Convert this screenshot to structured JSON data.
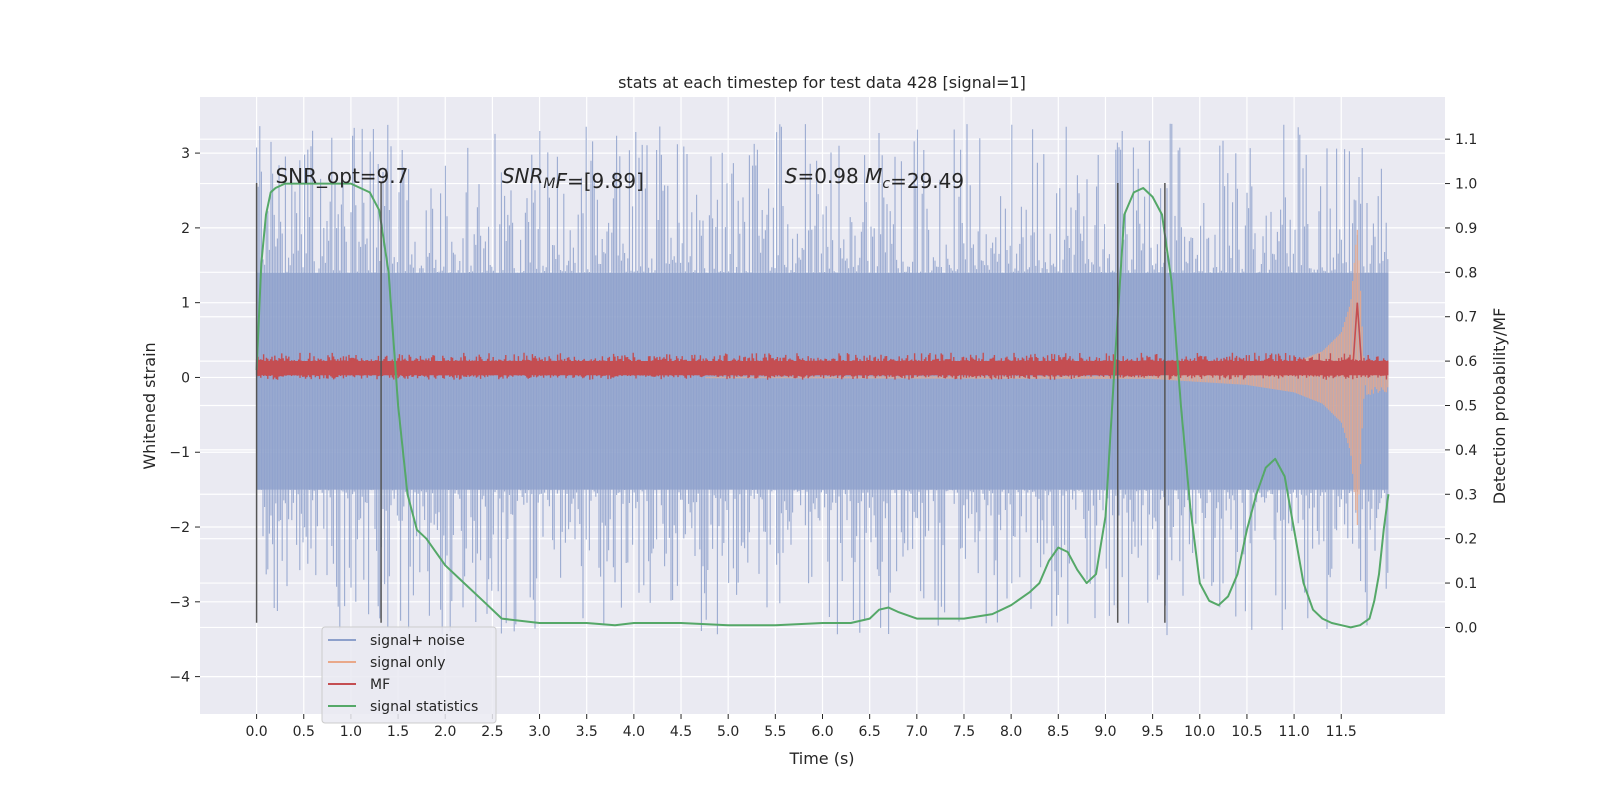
{
  "chart_data": {
    "type": "line",
    "title": "stats at each timestep for test data 428 [signal=1]",
    "xlabel": "Time (s)",
    "ylabel_left": "Whitened strain",
    "ylabel_right": "Detection probability/MF",
    "xlim": [
      -0.6,
      12.6
    ],
    "ylim_left": [
      -4.5,
      3.75
    ],
    "ylim_right": [
      -0.195,
      1.195
    ],
    "x_ticks": [
      0.0,
      0.5,
      1.0,
      1.5,
      2.0,
      2.5,
      3.0,
      3.5,
      4.0,
      4.5,
      5.0,
      5.5,
      6.0,
      6.5,
      7.0,
      7.5,
      8.0,
      8.5,
      9.0,
      9.5,
      10.0,
      10.5,
      11.0,
      11.5
    ],
    "x_tick_labels": [
      "0.0",
      "0.5",
      "1.0",
      "1.5",
      "2.0",
      "2.5",
      "3.0",
      "3.5",
      "4.0",
      "4.5",
      "5.0",
      "5.5",
      "6.0",
      "6.5",
      "7.0",
      "7.5",
      "8.0",
      "8.5",
      "9.0",
      "9.5",
      "10.0",
      "10.5",
      "11.0",
      "11.5"
    ],
    "y_left_ticks": [
      -4,
      -3,
      -2,
      -1,
      0,
      1,
      2,
      3
    ],
    "y_left_tick_labels": [
      "−4",
      "−3",
      "−2",
      "−1",
      "0",
      "1",
      "2",
      "3"
    ],
    "y_right_ticks": [
      0.0,
      0.1,
      0.2,
      0.3,
      0.4,
      0.5,
      0.6,
      0.7,
      0.8,
      0.9,
      1.0,
      1.1
    ],
    "y_right_tick_labels": [
      "0.0",
      "0.1",
      "0.2",
      "0.3",
      "0.4",
      "0.5",
      "0.6",
      "0.7",
      "0.8",
      "0.9",
      "1.0",
      "1.1"
    ],
    "grid": true,
    "legend_position": "lower-left",
    "annotations": [
      {
        "x": 0.2,
        "y": 2.6,
        "parts": [
          {
            "t": "SNR_opt=9.7"
          }
        ]
      },
      {
        "x": 2.6,
        "y": 2.6,
        "parts": [
          {
            "t": "SNR",
            "i": true
          },
          {
            "t": "M",
            "i": true,
            "sub": true
          },
          {
            "t": "F",
            "i": true
          },
          {
            "t": "=[9.89]"
          }
        ]
      },
      {
        "x": 5.6,
        "y": 2.6,
        "parts": [
          {
            "t": "S",
            "i": true
          },
          {
            "t": "=0.98   "
          },
          {
            "t": "M",
            "i": true
          },
          {
            "t": "c",
            "i": true,
            "sub": true
          },
          {
            "t": "=29.49"
          }
        ]
      }
    ],
    "vertical_lines": [
      {
        "x": 0.0,
        "y0": -3.28,
        "y1": 2.6
      },
      {
        "x": 1.32,
        "y0": -3.28,
        "y1": 2.6
      },
      {
        "x": 9.13,
        "y0": -3.28,
        "y1": 2.6
      },
      {
        "x": 9.63,
        "y0": -3.28,
        "y1": 2.6
      }
    ],
    "series": [
      {
        "name": "signal+ noise",
        "axis": "left",
        "color": "#8da0cb",
        "noise_envelope": {
          "x_start": 0.0,
          "x_end": 12.0,
          "core_low": -1.5,
          "core_high": 1.4,
          "peak_low": -3.45,
          "peak_high": 3.4
        }
      },
      {
        "name": "signal only",
        "axis": "left",
        "color": "#e9a88a",
        "chirp_envelope": [
          [
            0.0,
            0.0
          ],
          [
            9.5,
            0.02
          ],
          [
            10.0,
            0.06
          ],
          [
            10.5,
            0.1
          ],
          [
            11.0,
            0.2
          ],
          [
            11.3,
            0.35
          ],
          [
            11.5,
            0.6
          ],
          [
            11.6,
            1.0
          ],
          [
            11.67,
            2.0
          ],
          [
            11.72,
            0.8
          ],
          [
            11.75,
            0.25
          ],
          [
            12.0,
            0.2
          ]
        ]
      },
      {
        "name": "MF",
        "axis": "left",
        "color": "#c44e52",
        "band": {
          "x_start": 0.0,
          "x_end": 12.0,
          "low": 0.03,
          "high": 0.22,
          "max_peak": 0.33
        },
        "peak": {
          "x": 11.67,
          "y": 1.0
        }
      },
      {
        "name": "signal statistics",
        "axis": "right",
        "color": "#55a868",
        "x": [
          0.0,
          0.05,
          0.1,
          0.15,
          0.2,
          0.3,
          0.5,
          0.8,
          1.0,
          1.1,
          1.2,
          1.3,
          1.4,
          1.5,
          1.6,
          1.7,
          1.8,
          2.0,
          2.2,
          2.4,
          2.6,
          3.0,
          3.5,
          3.8,
          4.0,
          4.5,
          5.0,
          5.5,
          6.0,
          6.3,
          6.5,
          6.6,
          6.7,
          6.8,
          7.0,
          7.5,
          7.8,
          8.0,
          8.2,
          8.3,
          8.4,
          8.5,
          8.6,
          8.7,
          8.8,
          8.9,
          9.0,
          9.1,
          9.2,
          9.3,
          9.4,
          9.5,
          9.6,
          9.7,
          9.8,
          9.9,
          10.0,
          10.1,
          10.2,
          10.3,
          10.4,
          10.5,
          10.6,
          10.7,
          10.8,
          10.9,
          11.0,
          11.1,
          11.2,
          11.3,
          11.4,
          11.5,
          11.6,
          11.7,
          11.8,
          11.85,
          11.9,
          11.95,
          12.0
        ],
        "y": [
          0.58,
          0.82,
          0.93,
          0.98,
          0.99,
          1.0,
          1.0,
          1.0,
          1.0,
          0.99,
          0.98,
          0.94,
          0.8,
          0.5,
          0.3,
          0.22,
          0.2,
          0.14,
          0.1,
          0.06,
          0.02,
          0.01,
          0.01,
          0.005,
          0.01,
          0.01,
          0.005,
          0.005,
          0.01,
          0.01,
          0.02,
          0.04,
          0.045,
          0.035,
          0.02,
          0.02,
          0.03,
          0.05,
          0.08,
          0.1,
          0.15,
          0.18,
          0.17,
          0.13,
          0.1,
          0.12,
          0.25,
          0.6,
          0.93,
          0.98,
          0.99,
          0.97,
          0.93,
          0.78,
          0.5,
          0.27,
          0.1,
          0.06,
          0.05,
          0.07,
          0.12,
          0.22,
          0.3,
          0.36,
          0.38,
          0.34,
          0.22,
          0.1,
          0.04,
          0.02,
          0.01,
          0.005,
          0.0,
          0.005,
          0.02,
          0.06,
          0.12,
          0.22,
          0.3
        ]
      }
    ]
  }
}
